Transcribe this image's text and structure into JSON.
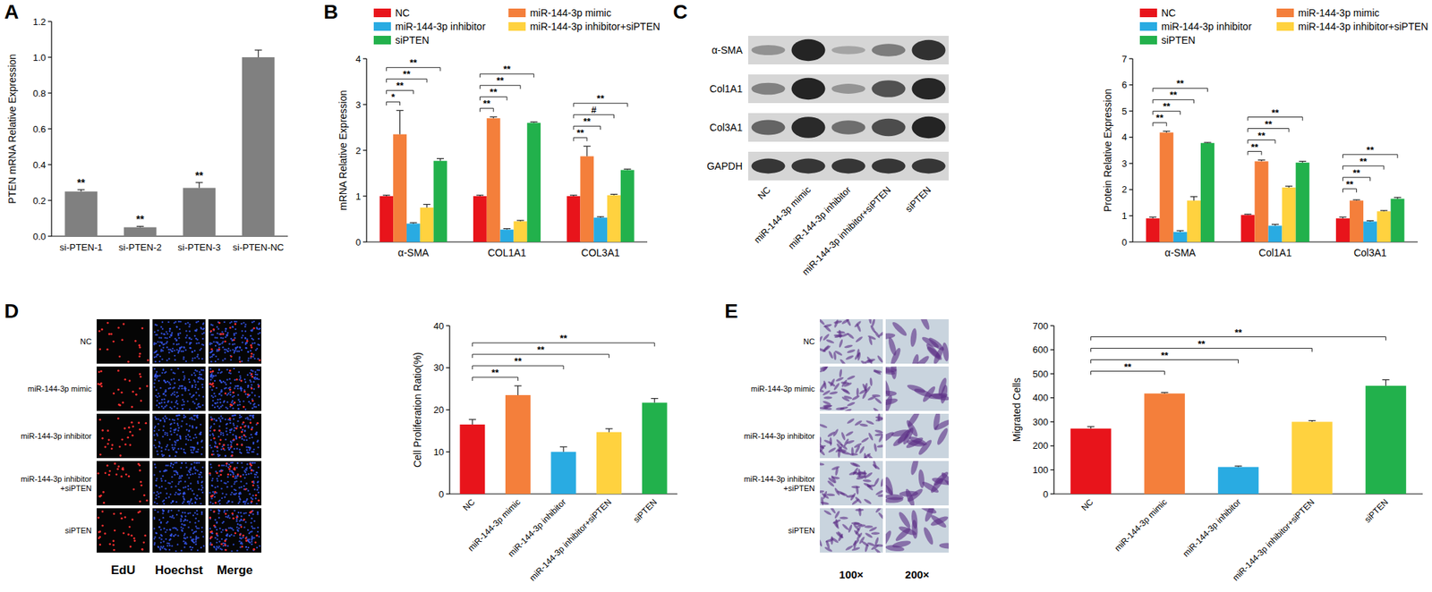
{
  "chart_data": [
    {
      "title": "A",
      "type": "bar",
      "categories": [
        "si-PTEN-1",
        "si-PTEN-2",
        "si-PTEN-3",
        "si-PTEN-NC"
      ],
      "values": [
        0.25,
        0.05,
        0.27,
        1.0
      ],
      "errors": [
        0.01,
        0.005,
        0.03,
        0.04
      ],
      "color": "#808080",
      "y_label": "PTEN mRNA Relative Expression",
      "ylim": [
        0,
        1.2
      ],
      "yticks": [
        {
          "value": 0,
          "label": "0.0"
        },
        0.2,
        0.4,
        0.6,
        0.8,
        {
          "value": 1,
          "label": "1.0"
        },
        1.2
      ],
      "grid": false,
      "annotations": [
        {
          "index": 0,
          "text": "**"
        },
        {
          "index": 1,
          "text": "**"
        },
        {
          "index": 2,
          "text": "**"
        }
      ]
    },
    {
      "title": "B",
      "type": "bar",
      "categories": [
        "α-SMA",
        "COL1A1",
        "COL3A1"
      ],
      "series": [
        {
          "name": "NC",
          "color": "#e8141b",
          "values": [
            1,
            1,
            1
          ],
          "errors": [
            0.02,
            0.02,
            0.02
          ]
        },
        {
          "name": "miR-144-3p mimic",
          "color": "#f47f3b",
          "values": [
            2.35,
            2.7,
            1.87
          ],
          "errors": [
            0.52,
            0.03,
            0.22
          ]
        },
        {
          "name": "miR-144-3p inhibitor",
          "color": "#29abe2",
          "values": [
            0.4,
            0.27,
            0.53
          ],
          "errors": [
            0.02,
            0.02,
            0.02
          ]
        },
        {
          "name": "miR-144-3p inhibitor+siPTEN",
          "color": "#ffd23f",
          "values": [
            0.75,
            0.45,
            1.02
          ],
          "errors": [
            0.07,
            0.02,
            0.02
          ]
        },
        {
          "name": "siPTEN",
          "color": "#22b14c",
          "values": [
            1.77,
            2.6,
            1.57
          ],
          "errors": [
            0.05,
            0.02,
            0.02
          ]
        }
      ],
      "y_label": "mRNA Relative Expression",
      "ylim": [
        0,
        4
      ],
      "yticks": [
        0,
        1,
        2,
        3,
        4
      ],
      "grid": false,
      "legend": "top",
      "annotations": [
        {
          "category": 0,
          "from": 0,
          "to": 1,
          "text": "*"
        },
        {
          "category": 0,
          "from": 0,
          "to": 2,
          "text": "**"
        },
        {
          "category": 0,
          "from": 0,
          "to": 3,
          "text": "**"
        },
        {
          "category": 0,
          "from": 0,
          "to": 4,
          "text": "**"
        },
        {
          "category": 1,
          "from": 0,
          "to": 1,
          "text": "**"
        },
        {
          "category": 1,
          "from": 0,
          "to": 2,
          "text": "**"
        },
        {
          "category": 1,
          "from": 0,
          "to": 3,
          "text": "**"
        },
        {
          "category": 1,
          "from": 0,
          "to": 4,
          "text": "**"
        },
        {
          "category": 2,
          "from": 0,
          "to": 1,
          "text": "**"
        },
        {
          "category": 2,
          "from": 0,
          "to": 2,
          "text": "**"
        },
        {
          "category": 2,
          "from": 0,
          "to": 3,
          "text": "#"
        },
        {
          "category": 2,
          "from": 0,
          "to": 4,
          "text": "**"
        }
      ]
    },
    {
      "title": "C",
      "type": "bar",
      "categories": [
        "α-SMA",
        "Col1A1",
        "Col3A1"
      ],
      "series": [
        {
          "name": "NC",
          "color": "#e8141b",
          "values": [
            0.9,
            1.03,
            0.9
          ],
          "errors": [
            0.05,
            0.03,
            0.05
          ]
        },
        {
          "name": "miR-144-3p mimic",
          "color": "#f47f3b",
          "values": [
            4.18,
            3.08,
            1.58
          ],
          "errors": [
            0.05,
            0.05,
            0.03
          ]
        },
        {
          "name": "miR-144-3p inhibitor",
          "color": "#29abe2",
          "values": [
            0.38,
            0.62,
            0.78
          ],
          "errors": [
            0.05,
            0.05,
            0.03
          ]
        },
        {
          "name": "miR-144-3p inhibitor+siPTEN",
          "color": "#ffd23f",
          "values": [
            1.58,
            2.08,
            1.17
          ],
          "errors": [
            0.15,
            0.05,
            0.03
          ]
        },
        {
          "name": "siPTEN",
          "color": "#22b14c",
          "values": [
            3.78,
            3.03,
            1.65
          ],
          "errors": [
            0.02,
            0.05,
            0.05
          ]
        }
      ],
      "y_label": "Protein Relative Expression",
      "ylim": [
        0,
        7
      ],
      "yticks": [
        0,
        1,
        2,
        3,
        4,
        5,
        6,
        7
      ],
      "grid": false,
      "legend": "top",
      "blot_rows": [
        "α-SMA",
        "Col1A1",
        "Col3A1",
        "GAPDH"
      ],
      "annotations": [
        {
          "category": 0,
          "from": 0,
          "to": 1,
          "text": "**"
        },
        {
          "category": 0,
          "from": 0,
          "to": 2,
          "text": "**"
        },
        {
          "category": 0,
          "from": 0,
          "to": 3,
          "text": "**"
        },
        {
          "category": 0,
          "from": 0,
          "to": 4,
          "text": "**"
        },
        {
          "category": 1,
          "from": 0,
          "to": 1,
          "text": "**"
        },
        {
          "category": 1,
          "from": 0,
          "to": 2,
          "text": "**"
        },
        {
          "category": 1,
          "from": 0,
          "to": 3,
          "text": "**"
        },
        {
          "category": 1,
          "from": 0,
          "to": 4,
          "text": "**"
        },
        {
          "category": 2,
          "from": 0,
          "to": 1,
          "text": "**"
        },
        {
          "category": 2,
          "from": 0,
          "to": 2,
          "text": "**"
        },
        {
          "category": 2,
          "from": 0,
          "to": 3,
          "text": "**"
        },
        {
          "category": 2,
          "from": 0,
          "to": 4,
          "text": "**"
        }
      ]
    },
    {
      "title": "D",
      "type": "bar",
      "categories": [
        "NC",
        "miR-144-3p mimic",
        "miR-144-3p inhibitor",
        "miR-144-3p inhibitor+siPTEN",
        "siPTEN"
      ],
      "values": [
        16.5,
        23.5,
        10,
        14.7,
        21.7
      ],
      "errors": [
        1.2,
        2.2,
        1.2,
        0.8,
        1.0
      ],
      "colors": [
        "#e8141b",
        "#f47f3b",
        "#29abe2",
        "#ffd23f",
        "#22b14c"
      ],
      "y_label": "Cell Proliferation Ratio(%)",
      "ylim": [
        0,
        40
      ],
      "yticks": [
        0,
        10,
        20,
        30,
        40
      ],
      "grid": false,
      "image_columns": [
        "EdU",
        "Hoechst",
        "Merge"
      ],
      "annotations": [
        {
          "from": 0,
          "to": 1,
          "text": "**"
        },
        {
          "from": 0,
          "to": 2,
          "text": "**"
        },
        {
          "from": 0,
          "to": 3,
          "text": "**"
        },
        {
          "from": 0,
          "to": 4,
          "text": "**"
        }
      ]
    },
    {
      "title": "E",
      "type": "bar",
      "categories": [
        "NC",
        "miR-144-3p mimic",
        "miR-144-3p inhibitor",
        "miR-144-3p inhibitor+siPTEN",
        "siPTEN"
      ],
      "values": [
        272,
        418,
        112,
        300,
        450
      ],
      "errors": [
        8,
        4,
        4,
        5,
        25
      ],
      "colors": [
        "#e8141b",
        "#f47f3b",
        "#29abe2",
        "#ffd23f",
        "#22b14c"
      ],
      "y_label": "Migrated Cells",
      "ylim": [
        0,
        700
      ],
      "yticks": [
        0,
        100,
        200,
        300,
        400,
        500,
        600,
        700
      ],
      "grid": false,
      "image_columns": [
        "100×",
        "200×"
      ],
      "annotations": [
        {
          "from": 0,
          "to": 1,
          "text": "**"
        },
        {
          "from": 0,
          "to": 2,
          "text": "**"
        },
        {
          "from": 0,
          "to": 3,
          "text": "**"
        },
        {
          "from": 0,
          "to": 4,
          "text": "**"
        }
      ]
    }
  ]
}
